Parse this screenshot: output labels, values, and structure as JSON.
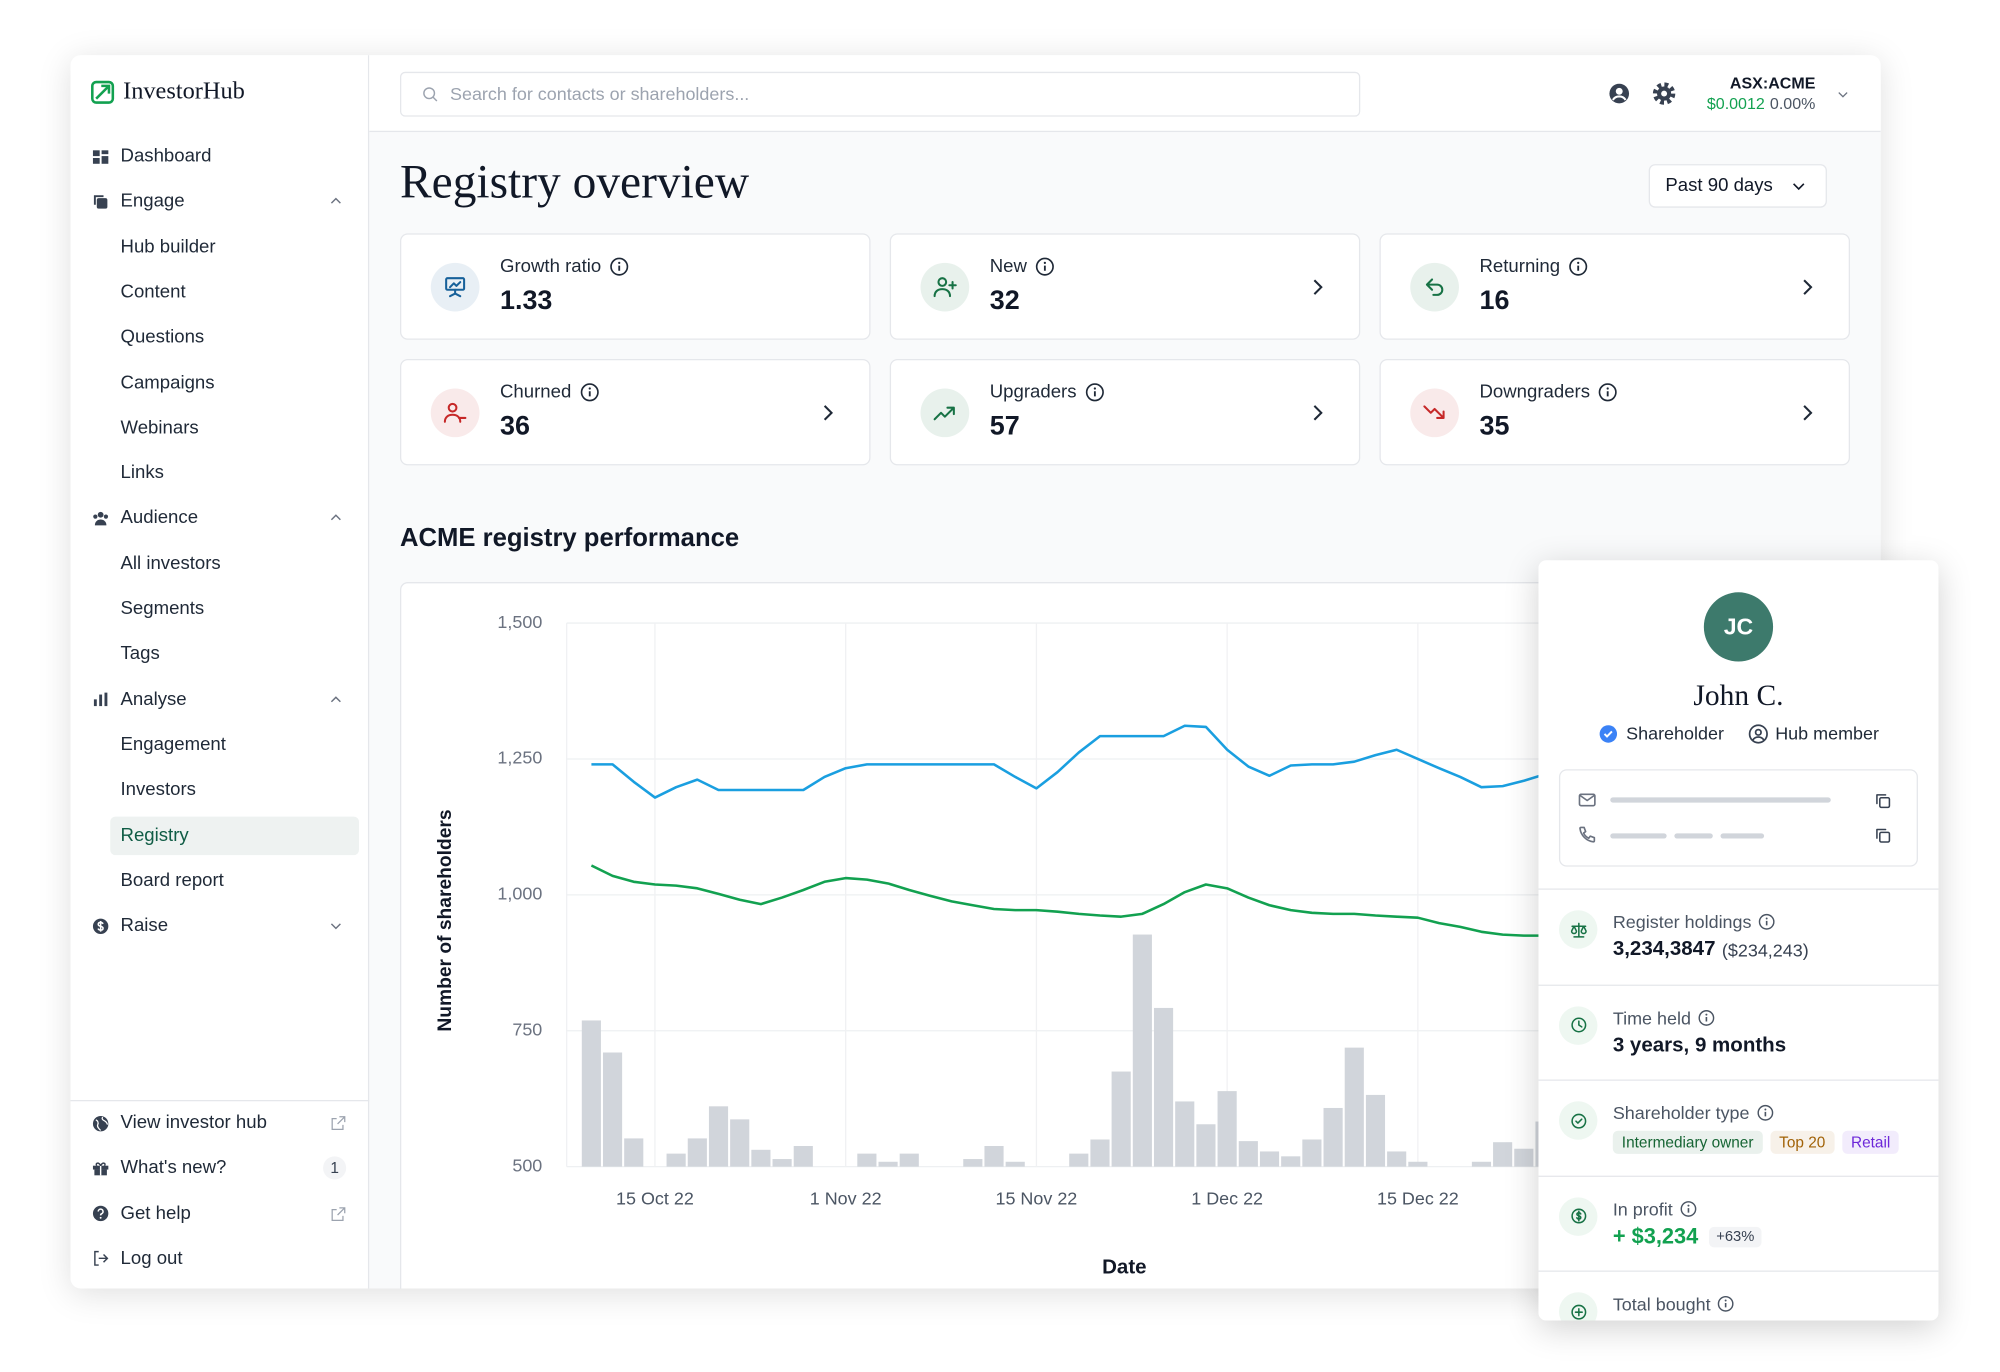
{
  "sidebar": {
    "brand": "InvestorHub",
    "nav": [
      {
        "label": "Dashboard"
      },
      {
        "label": "Engage",
        "expanded": true,
        "items": [
          "Hub builder",
          "Content",
          "Questions",
          "Campaigns",
          "Webinars",
          "Links"
        ]
      },
      {
        "label": "Audience",
        "expanded": true,
        "items": [
          "All investors",
          "Segments",
          "Tags"
        ]
      },
      {
        "label": "Analyse",
        "expanded": true,
        "items": [
          "Engagement",
          "Investors",
          "Registry",
          "Board report"
        ],
        "active_index": 2
      },
      {
        "label": "Raise",
        "expanded": false
      }
    ],
    "footer": [
      {
        "label": "View investor hub",
        "external": true
      },
      {
        "label": "What's new?",
        "badge": "1"
      },
      {
        "label": "Get help",
        "external": true
      },
      {
        "label": "Log out"
      }
    ]
  },
  "header": {
    "search_placeholder": "Search for contacts or shareholders...",
    "ticker": "ASX:ACME",
    "price": "$0.0012",
    "change": "0.00%"
  },
  "page": {
    "title": "Registry overview",
    "period": "Past 90 days",
    "section_title": "ACME registry performance"
  },
  "stats": [
    {
      "label": "Growth ratio",
      "value": "1.33",
      "color": "#17619a",
      "link": false
    },
    {
      "label": "New",
      "value": "32",
      "color": "#177245",
      "link": true
    },
    {
      "label": "Returning",
      "value": "16",
      "color": "#177245",
      "link": true
    },
    {
      "label": "Churned",
      "value": "36",
      "color": "#c62828",
      "link": true
    },
    {
      "label": "Upgraders",
      "value": "57",
      "color": "#177245",
      "link": true
    },
    {
      "label": "Downgraders",
      "value": "35",
      "color": "#c62828",
      "link": true
    }
  ],
  "chart_data": {
    "type": "combo",
    "x_label": "Date",
    "y_label": "Number of shareholders",
    "categories": [
      null,
      null,
      null,
      "15 Oct 22",
      null,
      null,
      null,
      null,
      null,
      null,
      null,
      null,
      "1 Nov 22",
      null,
      null,
      null,
      null,
      null,
      null,
      null,
      null,
      "15 Nov 22",
      null,
      null,
      null,
      null,
      null,
      null,
      null,
      null,
      "1 Dec 22",
      null,
      null,
      null,
      null,
      null,
      null,
      null,
      null,
      "15 Dec 22",
      null,
      null,
      null,
      null,
      null,
      null
    ],
    "ylim": [
      500,
      1500
    ],
    "yticks": [
      500,
      750,
      {
        "value": 1000,
        "label": "1,000"
      },
      {
        "value": 1250,
        "label": "1,250"
      },
      {
        "value": 1500,
        "label": "1,500"
      }
    ],
    "grid": true,
    "series": [
      {
        "type": "bar",
        "color": "#d1d5db",
        "values": [
          769,
          710,
          552,
          null,
          524,
          552,
          611,
          587,
          531,
          514,
          538,
          null,
          null,
          524,
          509,
          524,
          null,
          null,
          514,
          538,
          509,
          null,
          null,
          524,
          550,
          675,
          927,
          792,
          620,
          578,
          639,
          547,
          528,
          519,
          550,
          608,
          719,
          632,
          528,
          509,
          null,
          null,
          509,
          545,
          533,
          583
        ]
      },
      {
        "type": "line",
        "color": "#1a9fe0",
        "values": [
          1240,
          1240,
          1208,
          1179,
          1198,
          1212,
          1193,
          1193,
          1193,
          1193,
          1193,
          1217,
          1233,
          1240,
          1240,
          1240,
          1240,
          1240,
          1240,
          1240,
          1217,
          1196,
          1226,
          1262,
          1292,
          1292,
          1292,
          1292,
          1311,
          1309,
          1267,
          1236,
          1219,
          1238,
          1240,
          1240,
          1245,
          1257,
          1267,
          1250,
          1233,
          1217,
          1198,
          1200,
          1210,
          1222
        ]
      },
      {
        "type": "line",
        "color": "#12a150",
        "values": [
          1054,
          1035,
          1024,
          1019,
          1017,
          1012,
          1002,
          991,
          983,
          995,
          1009,
          1024,
          1031,
          1028,
          1021,
          1009,
          998,
          988,
          981,
          974,
          972,
          972,
          969,
          965,
          962,
          960,
          965,
          983,
          1005,
          1019,
          1012,
          995,
          981,
          972,
          967,
          965,
          965,
          962,
          960,
          958,
          948,
          941,
          932,
          927,
          925,
          925
        ]
      }
    ]
  },
  "profile": {
    "initials": "JC",
    "name": "John C.",
    "badges": [
      "Shareholder",
      "Hub member"
    ],
    "details": [
      {
        "label": "Register holdings",
        "value": "3,234,3847",
        "note": "($234,243)"
      },
      {
        "label": "Time held",
        "value": "3 years, 9 months"
      },
      {
        "label": "Shareholder type",
        "tags": [
          {
            "text": "Intermediary owner",
            "color": "#166534"
          },
          {
            "text": "Top 20",
            "color": "#a16207"
          },
          {
            "text": "Retail",
            "color": "#6d28d9"
          }
        ]
      },
      {
        "label": "In profit",
        "value": "+ $3,234",
        "color": "#12a150",
        "badge": "+63%"
      },
      {
        "label": "Total bought"
      }
    ]
  }
}
